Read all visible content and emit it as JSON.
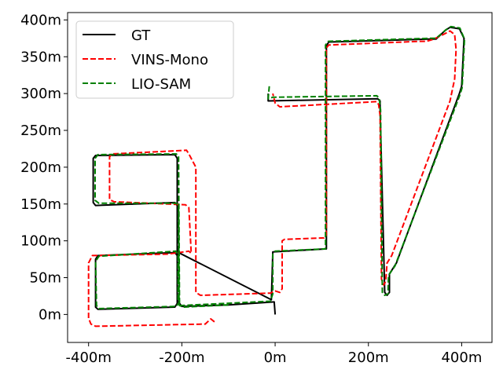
{
  "chart_data": {
    "type": "line",
    "title": "",
    "xlabel": "",
    "ylabel": "",
    "xlim": [
      -445,
      465
    ],
    "ylim": [
      -38,
      410
    ],
    "x_ticks": [
      -400,
      -200,
      0,
      200,
      400
    ],
    "x_tick_labels": [
      "-400m",
      "-200m",
      "0m",
      "200m",
      "400m"
    ],
    "y_ticks": [
      0,
      50,
      100,
      150,
      200,
      250,
      300,
      350,
      400
    ],
    "y_tick_labels": [
      "0m",
      "50m",
      "100m",
      "150m",
      "200m",
      "250m",
      "300m",
      "350m",
      "400m"
    ],
    "grid": false,
    "legend": "top-left",
    "series": [
      {
        "name": "GT",
        "color": "#000000",
        "style": "solid",
        "points": [
          [
            0,
            0
          ],
          [
            -2,
            17
          ],
          [
            -100,
            13
          ],
          [
            -200,
            11
          ],
          [
            -205,
            15
          ],
          [
            -210,
            20
          ],
          [
            -210,
            80
          ],
          [
            -215,
            84
          ],
          [
            -380,
            80
          ],
          [
            -385,
            75
          ],
          [
            -385,
            10
          ],
          [
            -380,
            7
          ],
          [
            -215,
            10
          ],
          [
            -210,
            15
          ],
          [
            -210,
            148
          ],
          [
            -215,
            152
          ],
          [
            -385,
            148
          ],
          [
            -390,
            152
          ],
          [
            -390,
            212
          ],
          [
            -385,
            216
          ],
          [
            -215,
            217
          ],
          [
            -210,
            212
          ],
          [
            -210,
            85
          ],
          [
            -8,
            20
          ],
          [
            -5,
            85
          ],
          [
            110,
            89
          ],
          [
            110,
            365
          ],
          [
            115,
            370
          ],
          [
            330,
            374
          ],
          [
            345,
            374
          ],
          [
            365,
            386
          ],
          [
            375,
            390
          ],
          [
            395,
            388
          ],
          [
            405,
            375
          ],
          [
            400,
            310
          ],
          [
            395,
            300
          ],
          [
            260,
            70
          ],
          [
            245,
            55
          ],
          [
            245,
            30
          ],
          [
            240,
            26
          ],
          [
            235,
            30
          ],
          [
            225,
            280
          ],
          [
            225,
            290
          ],
          [
            220,
            293
          ],
          [
            -15,
            290
          ],
          [
            -15,
            300
          ]
        ]
      },
      {
        "name": "VINS-Mono",
        "color": "#ff0000",
        "style": "dashed",
        "points": [
          [
            -130,
            -10
          ],
          [
            -138,
            -6
          ],
          [
            -150,
            -13
          ],
          [
            -385,
            -16
          ],
          [
            -395,
            -13
          ],
          [
            -400,
            -5
          ],
          [
            -400,
            70
          ],
          [
            -392,
            80
          ],
          [
            -230,
            82
          ],
          [
            -185,
            86
          ],
          [
            -180,
            83
          ],
          [
            -185,
            145
          ],
          [
            -192,
            149
          ],
          [
            -345,
            153
          ],
          [
            -355,
            156
          ],
          [
            -355,
            214
          ],
          [
            -350,
            218
          ],
          [
            -190,
            223
          ],
          [
            -185,
            218
          ],
          [
            -170,
            200
          ],
          [
            -170,
            30
          ],
          [
            -160,
            26
          ],
          [
            -10,
            29
          ],
          [
            0,
            32
          ],
          [
            10,
            30
          ],
          [
            15,
            35
          ],
          [
            15,
            100
          ],
          [
            20,
            102
          ],
          [
            105,
            104
          ],
          [
            110,
            108
          ],
          [
            110,
            362
          ],
          [
            115,
            366
          ],
          [
            312,
            371
          ],
          [
            325,
            371
          ],
          [
            340,
            374
          ],
          [
            360,
            380
          ],
          [
            375,
            385
          ],
          [
            385,
            380
          ],
          [
            388,
            360
          ],
          [
            385,
            320
          ],
          [
            375,
            290
          ],
          [
            250,
            80
          ],
          [
            240,
            70
          ],
          [
            237,
            45
          ],
          [
            233,
            40
          ],
          [
            228,
            48
          ],
          [
            225,
            270
          ],
          [
            222,
            285
          ],
          [
            218,
            289
          ],
          [
            10,
            282
          ],
          [
            0,
            287
          ],
          [
            -5,
            300
          ]
        ]
      },
      {
        "name": "LIO-SAM",
        "color": "#008000",
        "style": "dashed",
        "points": [
          [
            -100,
            13
          ],
          [
            -195,
            10
          ],
          [
            -205,
            12
          ],
          [
            -208,
            20
          ],
          [
            -208,
            82
          ],
          [
            -213,
            86
          ],
          [
            -378,
            79
          ],
          [
            -385,
            72
          ],
          [
            -383,
            12
          ],
          [
            -378,
            8
          ],
          [
            -212,
            11
          ],
          [
            -206,
            16
          ],
          [
            -207,
            146
          ],
          [
            -212,
            151
          ],
          [
            -378,
            151
          ],
          [
            -386,
            155
          ],
          [
            -386,
            212
          ],
          [
            -380,
            217
          ],
          [
            -212,
            218
          ],
          [
            -207,
            215
          ],
          [
            -205,
            12
          ],
          [
            -10,
            18
          ],
          [
            -5,
            28
          ],
          [
            -5,
            82
          ],
          [
            0,
            86
          ],
          [
            108,
            89
          ],
          [
            108,
            366
          ],
          [
            114,
            371
          ],
          [
            330,
            375
          ],
          [
            345,
            375
          ],
          [
            367,
            387
          ],
          [
            377,
            391
          ],
          [
            396,
            389
          ],
          [
            406,
            374
          ],
          [
            401,
            308
          ],
          [
            396,
            298
          ],
          [
            257,
            66
          ],
          [
            243,
            53
          ],
          [
            242,
            28
          ],
          [
            235,
            26
          ],
          [
            230,
            30
          ],
          [
            226,
            278
          ],
          [
            223,
            294
          ],
          [
            218,
            297
          ],
          [
            -5,
            295
          ],
          [
            -15,
            293
          ],
          [
            -12,
            313
          ]
        ]
      }
    ]
  }
}
